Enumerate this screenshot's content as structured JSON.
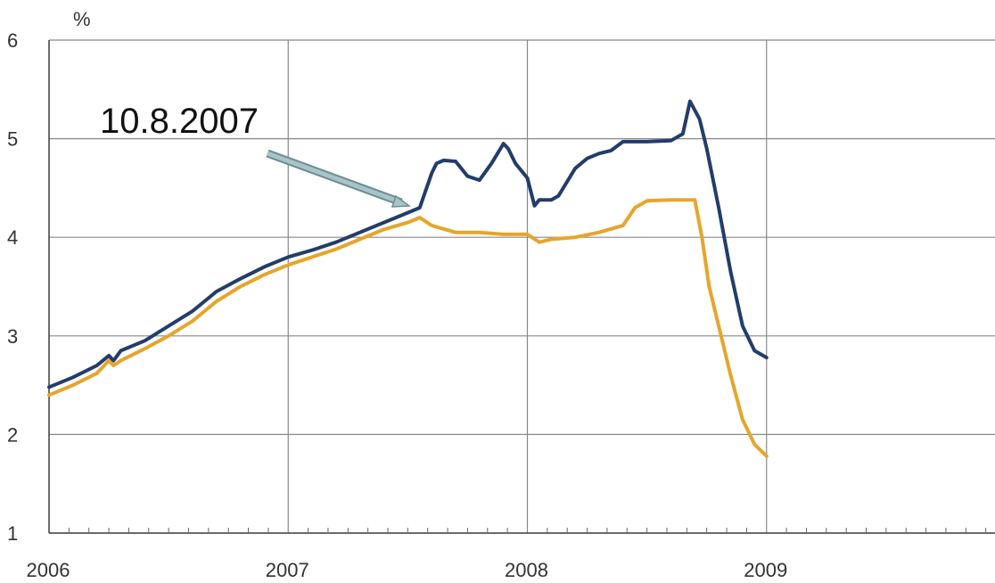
{
  "chart_data": {
    "type": "line",
    "title": "",
    "xlabel": "",
    "ylabel": "%",
    "ylim": [
      1,
      6
    ],
    "yticks": [
      "1",
      "2",
      "3",
      "4",
      "5",
      "6"
    ],
    "xticks": [
      "2006",
      "2007",
      "2008",
      "2009"
    ],
    "xlim": [
      2006.0,
      2010.0
    ],
    "grid": true,
    "annotation": {
      "text": "10.8.2007"
    },
    "colors": {
      "series_1": "#223d6b",
      "series_2": "#e6a52c",
      "grid": "#888888",
      "arrow": "#a9c4c9"
    },
    "series": [
      {
        "x": [
          2006.0,
          2006.1,
          2006.2,
          2006.25,
          2006.27,
          2006.3,
          2006.4,
          2006.5,
          2006.6,
          2006.7,
          2006.8,
          2006.9,
          2007.0,
          2007.1,
          2007.2,
          2007.3,
          2007.4,
          2007.5,
          2007.55,
          2007.6,
          2007.62,
          2007.65,
          2007.7,
          2007.75,
          2007.8,
          2007.85,
          2007.9,
          2007.92,
          2007.95,
          2008.0,
          2008.03,
          2008.05,
          2008.1,
          2008.13,
          2008.2,
          2008.25,
          2008.3,
          2008.35,
          2008.4,
          2008.5,
          2008.6,
          2008.65,
          2008.68,
          2008.72,
          2008.75,
          2008.8,
          2008.85,
          2008.9,
          2008.95,
          2009.0
        ],
        "values": [
          2.48,
          2.58,
          2.7,
          2.8,
          2.75,
          2.85,
          2.95,
          3.1,
          3.25,
          3.45,
          3.58,
          3.7,
          3.8,
          3.87,
          3.95,
          4.05,
          4.15,
          4.25,
          4.3,
          4.65,
          4.75,
          4.78,
          4.77,
          4.62,
          4.58,
          4.75,
          4.95,
          4.9,
          4.75,
          4.6,
          4.32,
          4.38,
          4.38,
          4.42,
          4.7,
          4.8,
          4.85,
          4.88,
          4.97,
          4.97,
          4.98,
          5.05,
          5.38,
          5.2,
          4.9,
          4.3,
          3.65,
          3.1,
          2.85,
          2.78
        ]
      },
      {
        "x": [
          2006.0,
          2006.1,
          2006.2,
          2006.25,
          2006.27,
          2006.3,
          2006.4,
          2006.5,
          2006.6,
          2006.7,
          2006.8,
          2006.9,
          2007.0,
          2007.1,
          2007.2,
          2007.3,
          2007.4,
          2007.5,
          2007.55,
          2007.6,
          2007.7,
          2007.8,
          2007.9,
          2008.0,
          2008.05,
          2008.1,
          2008.2,
          2008.3,
          2008.4,
          2008.45,
          2008.5,
          2008.6,
          2008.7,
          2008.73,
          2008.76,
          2008.8,
          2008.85,
          2008.9,
          2008.95,
          2009.0
        ],
        "values": [
          2.4,
          2.5,
          2.62,
          2.75,
          2.7,
          2.75,
          2.87,
          3.0,
          3.15,
          3.35,
          3.5,
          3.62,
          3.72,
          3.8,
          3.88,
          3.98,
          4.08,
          4.15,
          4.2,
          4.12,
          4.05,
          4.05,
          4.03,
          4.03,
          3.95,
          3.98,
          4.0,
          4.05,
          4.12,
          4.3,
          4.37,
          4.38,
          4.38,
          4.0,
          3.5,
          3.1,
          2.6,
          2.15,
          1.9,
          1.78
        ]
      }
    ]
  }
}
